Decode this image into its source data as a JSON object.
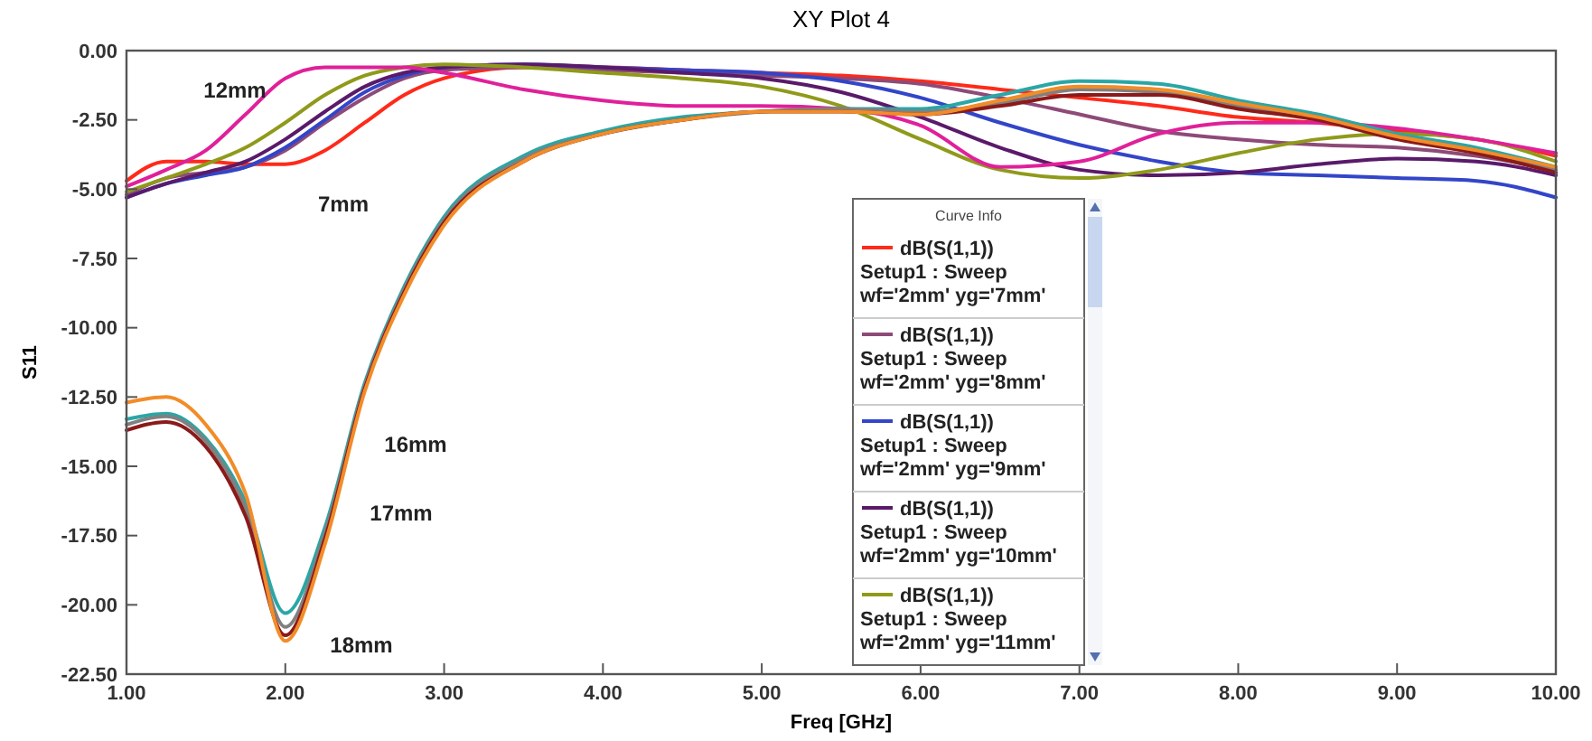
{
  "chart_data": {
    "type": "line",
    "title": "XY Plot 4",
    "xlabel": "Freq [GHz]",
    "ylabel": "S11",
    "legend_title": "Curve Info",
    "legend": "bottom",
    "grid": false,
    "marker": "none",
    "line_style": "solid",
    "x": [
      1,
      1.25,
      1.5,
      1.75,
      2,
      2.25,
      2.5,
      2.75,
      3,
      3.5,
      4,
      4.5,
      5,
      5.5,
      6,
      6.5,
      7,
      7.5,
      8,
      8.5,
      9,
      9.5,
      10
    ],
    "xlim": [
      1,
      10
    ],
    "ylim": [
      -22.5,
      0
    ],
    "xticks": [
      {
        "value": 1,
        "label": "1.00"
      },
      {
        "value": 2,
        "label": "2.00"
      },
      {
        "value": 3,
        "label": "3.00"
      },
      {
        "value": 4,
        "label": "4.00"
      },
      {
        "value": 5,
        "label": "5.00"
      },
      {
        "value": 6,
        "label": "6.00"
      },
      {
        "value": 7,
        "label": "7.00"
      },
      {
        "value": 8,
        "label": "8.00"
      },
      {
        "value": 9,
        "label": "9.00"
      },
      {
        "value": 10,
        "label": "10.00"
      }
    ],
    "yticks": [
      {
        "value": 0,
        "label": "0.00"
      },
      {
        "value": -2.5,
        "label": "-2.50"
      },
      {
        "value": -5,
        "label": "-5.00"
      },
      {
        "value": -7.5,
        "label": "-7.50"
      },
      {
        "value": -10,
        "label": "-10.00"
      },
      {
        "value": -12.5,
        "label": "-12.50"
      },
      {
        "value": -15,
        "label": "-15.00"
      },
      {
        "value": -17.5,
        "label": "-17.50"
      },
      {
        "value": -20,
        "label": "-20.00"
      },
      {
        "value": -22.5,
        "label": "-22.50"
      }
    ],
    "series": [
      {
        "name": "dB(S(1,1))\nSetup1 : Sweep\nwf='2mm' yg='7mm'",
        "color": "#ff2a1a",
        "values": [
          -4.7,
          -4.0,
          -4.0,
          -4.1,
          -4.1,
          -3.6,
          -2.6,
          -1.6,
          -1.0,
          -0.6,
          -0.6,
          -0.7,
          -0.8,
          -0.9,
          -1.1,
          -1.4,
          -1.7,
          -2.0,
          -2.4,
          -2.6,
          -2.9,
          -3.2,
          -3.8
        ]
      },
      {
        "name": "dB(S(1,1))\nSetup1 : Sweep\nwf='2mm' yg='8mm'",
        "color": "#8e4a78",
        "values": [
          -5.2,
          -4.6,
          -4.4,
          -4.2,
          -3.6,
          -2.6,
          -1.7,
          -1.0,
          -0.7,
          -0.6,
          -0.7,
          -0.8,
          -0.9,
          -1.0,
          -1.2,
          -1.7,
          -2.3,
          -2.9,
          -3.2,
          -3.4,
          -3.5,
          -3.8,
          -4.3
        ]
      },
      {
        "name": "dB(S(1,1))\nSetup1 : Sweep\nwf='2mm' yg='9mm'",
        "color": "#3345c8",
        "values": [
          -5.3,
          -4.8,
          -4.5,
          -4.2,
          -3.5,
          -2.5,
          -1.5,
          -0.9,
          -0.6,
          -0.5,
          -0.6,
          -0.7,
          -0.8,
          -1.1,
          -1.7,
          -2.6,
          -3.4,
          -4.0,
          -4.4,
          -4.5,
          -4.6,
          -4.7,
          -5.3
        ]
      },
      {
        "name": "dB(S(1,1))\nSetup1 : Sweep\nwf='2mm' yg='10mm'",
        "color": "#5a1a6a",
        "values": [
          -5.3,
          -4.8,
          -4.4,
          -4.0,
          -3.2,
          -2.2,
          -1.3,
          -0.8,
          -0.6,
          -0.5,
          -0.6,
          -0.8,
          -1.0,
          -1.5,
          -2.4,
          -3.5,
          -4.3,
          -4.5,
          -4.4,
          -4.1,
          -3.9,
          -4.0,
          -4.5
        ]
      },
      {
        "name": "dB(S(1,1))\nSetup1 : Sweep\nwf='2mm' yg='11mm'",
        "color": "#8f9a1a",
        "values": [
          -5.1,
          -4.6,
          -4.1,
          -3.5,
          -2.6,
          -1.6,
          -0.9,
          -0.6,
          -0.5,
          -0.6,
          -0.8,
          -1.0,
          -1.3,
          -2.0,
          -3.2,
          -4.3,
          -4.6,
          -4.3,
          -3.7,
          -3.2,
          -3.0,
          -3.2,
          -4.0
        ]
      },
      {
        "color": "#e0209a",
        "values": [
          -4.9,
          -4.3,
          -3.6,
          -2.3,
          -1.0,
          -0.6,
          -0.6,
          -0.6,
          -0.8,
          -1.4,
          -1.8,
          -2.0,
          -2.0,
          -2.1,
          -2.7,
          -4.2,
          -4.0,
          -3.0,
          -2.6,
          -2.6,
          -2.8,
          -3.2,
          -3.7
        ]
      },
      {
        "color": "#2aa6a6",
        "values": [
          -13.3,
          -13.1,
          -14.0,
          -16.3,
          -20.3,
          -17.2,
          -12.0,
          -8.5,
          -6.0,
          -3.8,
          -2.9,
          -2.4,
          -2.2,
          -2.1,
          -2.1,
          -1.6,
          -1.1,
          -1.2,
          -1.8,
          -2.3,
          -3.0,
          -3.5,
          -4.2
        ]
      },
      {
        "color": "#808080",
        "values": [
          -13.5,
          -13.2,
          -14.1,
          -16.5,
          -20.8,
          -17.4,
          -12.1,
          -8.6,
          -6.1,
          -3.9,
          -3.0,
          -2.5,
          -2.2,
          -2.1,
          -2.2,
          -1.9,
          -1.4,
          -1.5,
          -2.0,
          -2.4,
          -3.1,
          -3.6,
          -4.3
        ]
      },
      {
        "color": "#8b1a1a",
        "values": [
          -13.7,
          -13.4,
          -14.3,
          -16.8,
          -21.1,
          -17.6,
          -12.2,
          -8.7,
          -6.2,
          -4.0,
          -3.0,
          -2.5,
          -2.2,
          -2.2,
          -2.3,
          -2.0,
          -1.6,
          -1.6,
          -2.1,
          -2.5,
          -3.2,
          -3.7,
          -4.4
        ]
      },
      {
        "color": "#f28c28",
        "values": [
          -12.7,
          -12.5,
          -13.5,
          -16.0,
          -21.3,
          -17.8,
          -12.3,
          -8.8,
          -6.3,
          -4.0,
          -3.0,
          -2.5,
          -2.2,
          -2.2,
          -2.3,
          -1.8,
          -1.3,
          -1.4,
          -1.9,
          -2.4,
          -3.1,
          -3.6,
          -4.2
        ]
      }
    ],
    "annotations": [
      "12mm",
      "7mm",
      "16mm",
      "17mm",
      "18mm"
    ]
  }
}
